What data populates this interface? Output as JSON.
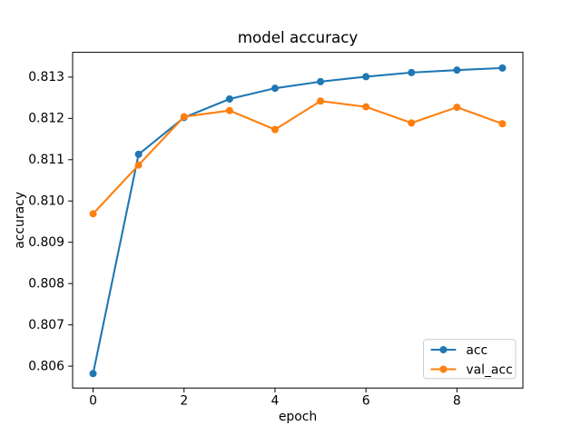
{
  "chart_data": {
    "type": "line",
    "title": "model accuracy",
    "xlabel": "epoch",
    "ylabel": "accuracy",
    "x": [
      0,
      1,
      2,
      3,
      4,
      5,
      6,
      7,
      8,
      9
    ],
    "series": [
      {
        "name": "acc",
        "color": "#1f77b4",
        "marker": "circle",
        "values": [
          0.80582,
          0.81113,
          0.81202,
          0.81247,
          0.81273,
          0.81289,
          0.81301,
          0.81311,
          0.81317,
          0.81322
        ]
      },
      {
        "name": "val_acc",
        "color": "#ff7f0e",
        "marker": "circle",
        "values": [
          0.80969,
          0.81087,
          0.81204,
          0.81219,
          0.81173,
          0.81242,
          0.81228,
          0.81189,
          0.81227,
          0.81187
        ]
      }
    ],
    "xlim": [
      -0.45,
      9.45
    ],
    "ylim": [
      0.80547,
      0.8136
    ],
    "x_ticks": {
      "values": [
        0,
        2,
        4,
        6,
        8
      ],
      "labels": [
        "0",
        "2",
        "4",
        "6",
        "8"
      ]
    },
    "y_ticks": {
      "values": [
        0.806,
        0.807,
        0.808,
        0.809,
        0.81,
        0.811,
        0.812,
        0.813
      ],
      "labels": [
        "0.806",
        "0.807",
        "0.808",
        "0.809",
        "0.810",
        "0.811",
        "0.812",
        "0.813"
      ]
    },
    "grid": false,
    "legend": {
      "position": "lower right",
      "entries": [
        "acc",
        "val_acc"
      ]
    },
    "background_color": "#ffffff",
    "spine_color": "#000000",
    "legend_border_color": "#cccccc"
  }
}
